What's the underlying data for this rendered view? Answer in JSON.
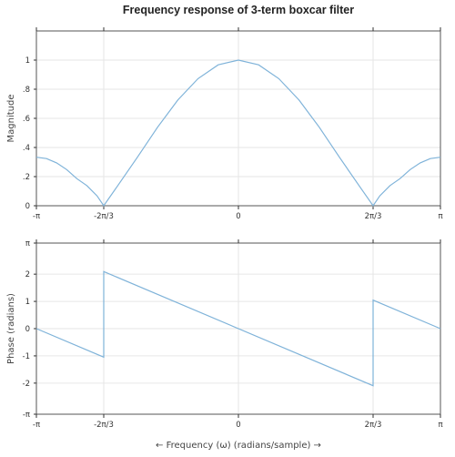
{
  "figure": {
    "title": "Frequency response of 3-term boxcar filter"
  },
  "colors": {
    "line": "#7fb3d9",
    "grid": "#e6e6e6",
    "frame": "#555555"
  },
  "chart_data": [
    {
      "type": "line",
      "title": "Frequency response of 3-term boxcar filter",
      "xlabel": "",
      "ylabel": "Magnitude",
      "xlim": [
        -3.141593,
        3.141593
      ],
      "ylim": [
        0,
        1.2
      ],
      "xticks": [
        {
          "value": -3.141593,
          "label": "-π"
        },
        {
          "value": -2.094395,
          "label": "-2π/3"
        },
        {
          "value": 0,
          "label": "0"
        },
        {
          "value": 2.094395,
          "label": "2π/3"
        },
        {
          "value": 3.141593,
          "label": "π"
        }
      ],
      "yticks": [
        {
          "value": 0,
          "label": "0"
        },
        {
          "value": 0.2,
          "label": ".2"
        },
        {
          "value": 0.4,
          "label": ".4"
        },
        {
          "value": 0.6,
          "label": ".6"
        },
        {
          "value": 0.8,
          "label": ".8"
        },
        {
          "value": 1,
          "label": "1"
        }
      ],
      "grid": true,
      "series": [
        {
          "x": [
            -3.1416,
            -2.9845,
            -2.8274,
            -2.6704,
            -2.5133,
            -2.3562,
            -2.1991,
            -2.0944,
            -1.885,
            -1.5708,
            -1.2566,
            -0.9425,
            -0.6283,
            -0.3142,
            0,
            0.3142,
            0.6283,
            0.9425,
            1.2566,
            1.5708,
            1.885,
            2.0944,
            2.1991,
            2.3562,
            2.5133,
            2.6704,
            2.8274,
            2.9845,
            3.1416
          ],
          "y": [
            0.3333,
            0.3235,
            0.2946,
            0.2481,
            0.1863,
            0.1381,
            0.068,
            0,
            0.1322,
            0.3333,
            0.5393,
            0.7255,
            0.8727,
            0.9673,
            1,
            0.9673,
            0.8727,
            0.7255,
            0.5393,
            0.3333,
            0.1322,
            0,
            0.068,
            0.1381,
            0.1863,
            0.2481,
            0.2946,
            0.3235,
            0.3333
          ]
        }
      ]
    },
    {
      "type": "line",
      "title": "",
      "xlabel": "← Frequency (ω) (radians/sample) →",
      "ylabel": "Phase (radians)",
      "xlim": [
        -3.141593,
        3.141593
      ],
      "ylim": [
        -3.141593,
        3.141593
      ],
      "xticks": [
        {
          "value": -3.141593,
          "label": "-π"
        },
        {
          "value": -2.094395,
          "label": "-2π/3"
        },
        {
          "value": 0,
          "label": "0"
        },
        {
          "value": 2.094395,
          "label": "2π/3"
        },
        {
          "value": 3.141593,
          "label": "π"
        }
      ],
      "yticks": [
        {
          "value": -3.141593,
          "label": "-π"
        },
        {
          "value": -2,
          "label": "-2"
        },
        {
          "value": -1,
          "label": "-1"
        },
        {
          "value": 0,
          "label": "0"
        },
        {
          "value": 1,
          "label": "1"
        },
        {
          "value": 2,
          "label": "2"
        },
        {
          "value": 3.141593,
          "label": "π"
        }
      ],
      "grid": true,
      "series": [
        {
          "x": [
            -3.1416,
            -2.0944,
            -2.0944,
            2.0944,
            2.0944,
            3.1416
          ],
          "y": [
            0,
            -1.0472,
            2.0944,
            -2.0944,
            1.0472,
            0
          ]
        }
      ]
    }
  ]
}
